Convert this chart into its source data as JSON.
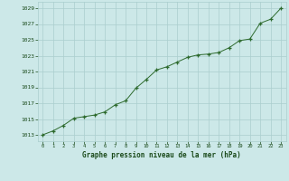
{
  "x": [
    0,
    1,
    2,
    3,
    4,
    5,
    6,
    7,
    8,
    9,
    10,
    11,
    12,
    13,
    14,
    15,
    16,
    17,
    18,
    19,
    20,
    21,
    22,
    23
  ],
  "y": [
    1013.0,
    1013.5,
    1014.2,
    1015.1,
    1015.3,
    1015.5,
    1015.9,
    1016.8,
    1017.3,
    1018.9,
    1020.0,
    1021.2,
    1021.6,
    1022.2,
    1022.8,
    1023.1,
    1023.2,
    1023.4,
    1024.0,
    1024.9,
    1025.1,
    1027.1,
    1027.6,
    1029.0
  ],
  "line_color": "#2d6a2d",
  "marker": "+",
  "bg_color": "#cce8e8",
  "grid_color": "#aacece",
  "title": "Graphe pression niveau de la mer (hPa)",
  "title_color": "#1a4a1a",
  "ylabel_ticks": [
    1013,
    1015,
    1017,
    1019,
    1021,
    1023,
    1025,
    1027,
    1029
  ],
  "xlim": [
    -0.5,
    23.5
  ],
  "ylim": [
    1012.2,
    1029.8
  ],
  "tick_color": "#1a4a1a"
}
